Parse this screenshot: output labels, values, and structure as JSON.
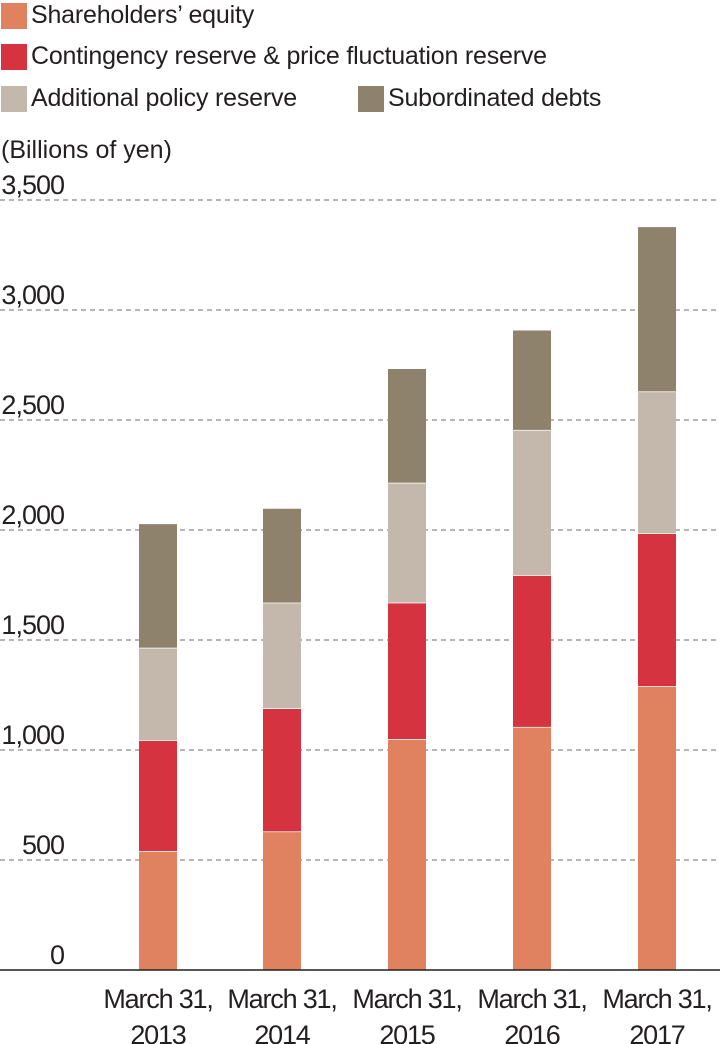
{
  "chart_data": {
    "type": "bar",
    "stacked": true,
    "unit_label": "(Billions of yen)",
    "categories": [
      [
        "March 31,",
        "2013"
      ],
      [
        "March 31,",
        "2014"
      ],
      [
        "March 31,",
        "2015"
      ],
      [
        "March 31,",
        "2016"
      ],
      [
        "March 31,",
        "2017"
      ]
    ],
    "series": [
      {
        "name": "Shareholders’ equity",
        "color": "#e08260",
        "values": [
          540,
          630,
          1050,
          1105,
          1290
        ]
      },
      {
        "name": "Contingency reserve & price fluctuation reserve",
        "color": "#d63341",
        "values": [
          505,
          560,
          620,
          690,
          695
        ]
      },
      {
        "name": "Additional policy reserve",
        "color": "#c3b8ab",
        "values": [
          420,
          480,
          545,
          660,
          645
        ]
      },
      {
        "name": "Subordinated debts",
        "color": "#8f826d",
        "values": [
          565,
          430,
          520,
          455,
          750
        ]
      }
    ],
    "yticks": [
      "0",
      "500",
      "1,000",
      "1,500",
      "2,000",
      "2,500",
      "3,000",
      "3,500"
    ],
    "ylim": [
      0,
      3500
    ],
    "grid": true,
    "legend_position": "top"
  }
}
